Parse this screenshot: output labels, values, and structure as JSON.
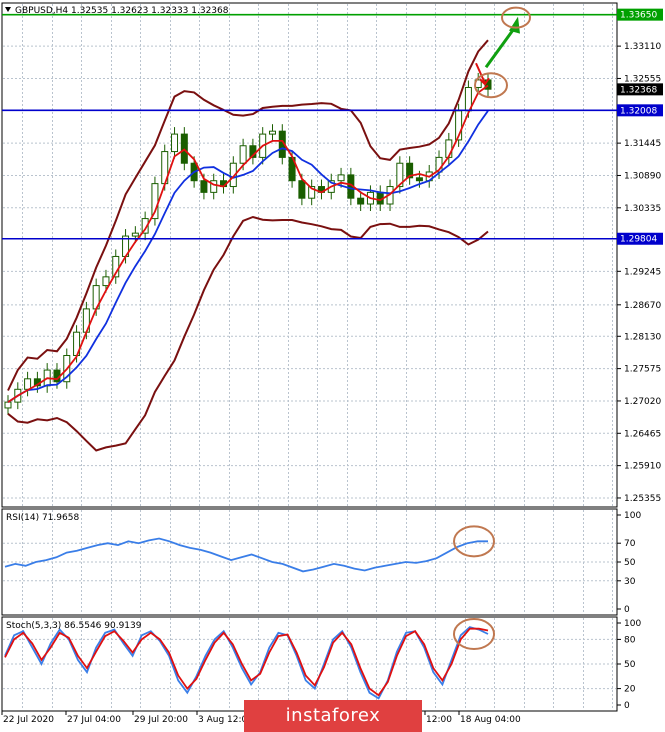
{
  "chart_data": [
    {
      "type": "candlestick",
      "title": "GBPUSD,H4",
      "ohlc_readout": [
        "1.32535",
        "1.32623",
        "1.32333",
        "1.32368"
      ],
      "y_ticks": [
        1.3311,
        1.32555,
        1.31445,
        1.3089,
        1.30335,
        1.29245,
        1.2867,
        1.2813,
        1.27575,
        1.2702,
        1.26465,
        1.2591,
        1.25355
      ],
      "ylim": [
        1.252,
        1.3385
      ],
      "current_price": "1.32368",
      "levels": [
        {
          "label": "1.33650",
          "value": 1.3365,
          "color": "#00a000"
        },
        {
          "label": "1.32008",
          "value": 1.32008,
          "color": "#0000cc"
        },
        {
          "label": "1.29804",
          "value": 1.29804,
          "color": "#0000cc"
        }
      ],
      "x_labels": [
        "22 Jul 2020",
        "27 Jul 04:00",
        "29 Jul 20:00",
        "3 Aug 12:00",
        "12:00",
        "18 Aug 04:00"
      ],
      "close_path": [
        [
          1.27,
          1.2722,
          1.274,
          1.2728,
          1.2755,
          1.2735,
          1.278,
          1.282,
          1.286,
          1.29,
          1.2915,
          1.295,
          1.2985,
          1.299,
          1.3015,
          1.3075,
          1.313,
          1.316,
          1.311,
          1.308,
          1.306
        ],
        [
          1.308,
          1.307,
          1.311,
          1.314,
          1.312,
          1.316,
          1.3165,
          1.312,
          1.308,
          1.305,
          1.307,
          1.306,
          1.308,
          1.309,
          1.305,
          1.304,
          1.306,
          1.304,
          1.307,
          1.311,
          1.3085,
          1.308
        ],
        [
          1.3095,
          1.312,
          1.315,
          1.32,
          1.324,
          1.3253,
          1.3237
        ]
      ],
      "arrow_target": 1.3365
    },
    {
      "type": "line",
      "title": "RSI(14) 71.9658",
      "y_ticks": [
        100,
        70,
        50,
        30,
        0
      ],
      "ylim": [
        0,
        100
      ],
      "series": [
        {
          "color": "#3a7ee8",
          "values": [
            45,
            48,
            46,
            50,
            52,
            55,
            60,
            62,
            65,
            68,
            70,
            68,
            72,
            70,
            73,
            75,
            72,
            68,
            65,
            63,
            60,
            56,
            52,
            55,
            58,
            54,
            50,
            48,
            44,
            40,
            42,
            45,
            48,
            46,
            43,
            41,
            44,
            46,
            48,
            50,
            49,
            51,
            54,
            60,
            66,
            70,
            72,
            71.97
          ]
        }
      ]
    },
    {
      "type": "line",
      "title": "Stoch(5,3,3) 86.5546 90.9139",
      "y_ticks": [
        100,
        80,
        50,
        20,
        0
      ],
      "ylim": [
        0,
        100
      ],
      "series": [
        {
          "color": "#3a7ee8",
          "values": [
            60,
            85,
            90,
            70,
            50,
            75,
            92,
            80,
            55,
            40,
            70,
            88,
            92,
            75,
            60,
            85,
            90,
            78,
            60,
            30,
            15,
            35,
            60,
            80,
            90,
            70,
            45,
            25,
            40,
            70,
            88,
            85,
            60,
            30,
            20,
            50,
            80,
            90,
            70,
            40,
            15,
            8,
            30,
            65,
            88,
            90,
            70,
            40,
            25,
            55,
            85,
            95,
            92,
            86.55
          ]
        },
        {
          "color": "#e01010",
          "values": [
            58,
            80,
            88,
            75,
            55,
            70,
            88,
            82,
            60,
            45,
            65,
            84,
            90,
            78,
            64,
            80,
            88,
            80,
            64,
            36,
            20,
            32,
            55,
            76,
            88,
            74,
            50,
            30,
            38,
            64,
            84,
            86,
            64,
            36,
            24,
            46,
            76,
            88,
            74,
            45,
            20,
            12,
            28,
            60,
            84,
            90,
            74,
            45,
            30,
            50,
            80,
            93,
            93,
            90.91
          ]
        }
      ]
    }
  ],
  "watermark": "instaforex"
}
